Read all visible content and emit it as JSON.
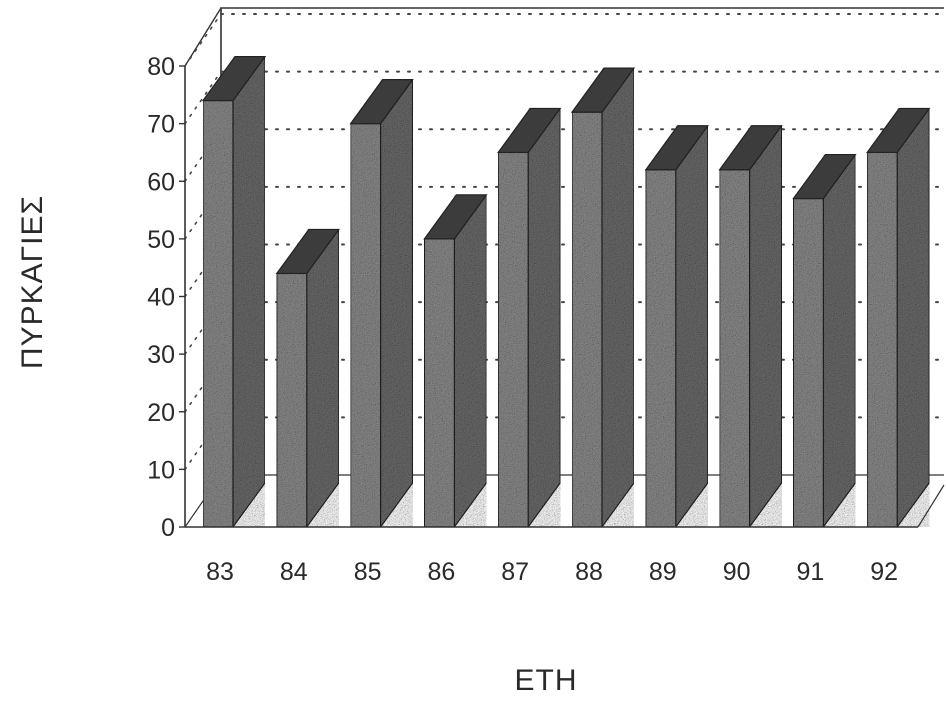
{
  "chart_data": {
    "type": "bar",
    "title": "",
    "xlabel": "ΕΤΗ",
    "ylabel": "ΠΥΡΚΑΓΙΕΣ",
    "categories": [
      "83",
      "84",
      "85",
      "86",
      "87",
      "88",
      "89",
      "90",
      "91",
      "92"
    ],
    "values": [
      74,
      44,
      70,
      50,
      65,
      72,
      62,
      62,
      57,
      65
    ],
    "ylim": [
      0,
      80
    ],
    "yticks": [
      "0",
      "10",
      "20",
      "30",
      "40",
      "50",
      "60",
      "70",
      "80"
    ],
    "grid": "dotted horizontal on back wall",
    "style": "3d",
    "colors": {
      "bar_front": "#8a8a8a",
      "bar_side": "#6a6a6a",
      "bar_top": "#3c3c3c",
      "axis": "#333333"
    }
  }
}
